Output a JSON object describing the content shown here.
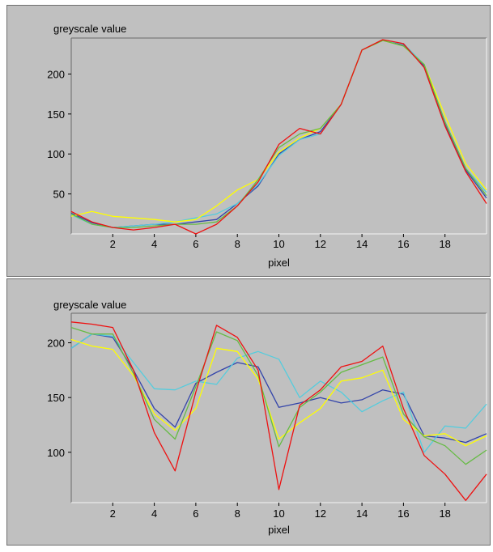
{
  "chart_data": [
    {
      "type": "line",
      "title": "",
      "ylabel": "greyscale value",
      "xlabel": "pixel",
      "xlim": [
        0,
        20
      ],
      "ylim": [
        0,
        245
      ],
      "xticks": [
        2,
        4,
        6,
        8,
        10,
        12,
        14,
        16,
        18
      ],
      "yticks": [
        50,
        100,
        150,
        200
      ],
      "x": [
        0,
        1,
        2,
        3,
        4,
        5,
        6,
        7,
        8,
        9,
        10,
        11,
        12,
        13,
        14,
        15,
        16,
        17,
        18,
        19,
        20
      ],
      "grid": false,
      "series": [
        {
          "color": "#ee1111",
          "values": [
            28,
            15,
            8,
            5,
            8,
            12,
            0,
            12,
            35,
            65,
            112,
            132,
            125,
            162,
            230,
            243,
            238,
            208,
            135,
            78,
            38
          ]
        },
        {
          "color": "#66bb44",
          "values": [
            25,
            12,
            8,
            8,
            10,
            12,
            12,
            15,
            35,
            68,
            108,
            125,
            132,
            162,
            230,
            242,
            235,
            212,
            140,
            82,
            48
          ]
        },
        {
          "color": "#ffff00",
          "values": [
            22,
            28,
            22,
            20,
            18,
            15,
            18,
            35,
            55,
            68,
            102,
            120,
            132,
            162,
            230,
            242,
            235,
            212,
            148,
            88,
            55
          ]
        },
        {
          "color": "#55ccdd",
          "values": [
            24,
            12,
            8,
            10,
            12,
            15,
            20,
            25,
            38,
            62,
            98,
            118,
            125,
            162,
            230,
            242,
            238,
            212,
            140,
            82,
            52
          ]
        },
        {
          "color": "#3344aa",
          "values": [
            26,
            14,
            8,
            10,
            12,
            12,
            15,
            18,
            38,
            60,
            100,
            118,
            128,
            162,
            230,
            242,
            236,
            210,
            138,
            80,
            45
          ]
        }
      ]
    },
    {
      "type": "line",
      "title": "",
      "ylabel": "greyscale value",
      "xlabel": "pixel",
      "xlim": [
        0,
        20
      ],
      "ylim": [
        54,
        227
      ],
      "xticks": [
        2,
        4,
        6,
        8,
        10,
        12,
        14,
        16,
        18
      ],
      "yticks": [
        100,
        150,
        200
      ],
      "x": [
        0,
        1,
        2,
        3,
        4,
        5,
        6,
        7,
        8,
        9,
        10,
        11,
        12,
        13,
        14,
        15,
        16,
        17,
        18,
        19,
        20
      ],
      "grid": false,
      "series": [
        {
          "color": "#ee1111",
          "values": [
            219,
            217,
            214,
            175,
            118,
            83,
            155,
            216,
            205,
            175,
            66,
            143,
            157,
            178,
            183,
            197,
            140,
            97,
            80,
            56,
            80
          ]
        },
        {
          "color": "#66bb44",
          "values": [
            214,
            208,
            208,
            172,
            130,
            112,
            160,
            210,
            202,
            170,
            105,
            141,
            155,
            173,
            180,
            187,
            135,
            114,
            106,
            89,
            102
          ]
        },
        {
          "color": "#ffff00",
          "values": [
            203,
            197,
            194,
            170,
            135,
            120,
            140,
            195,
            192,
            167,
            112,
            127,
            140,
            165,
            168,
            175,
            130,
            115,
            117,
            106,
            115
          ]
        },
        {
          "color": "#55ccdd",
          "values": [
            195,
            208,
            206,
            182,
            158,
            157,
            165,
            162,
            186,
            192,
            185,
            150,
            165,
            155,
            137,
            147,
            155,
            100,
            124,
            122,
            144
          ]
        },
        {
          "color": "#3344aa",
          "values": [
            195,
            208,
            205,
            175,
            140,
            123,
            163,
            173,
            182,
            178,
            141,
            145,
            150,
            145,
            148,
            157,
            153,
            115,
            113,
            109,
            117
          ]
        }
      ]
    }
  ]
}
